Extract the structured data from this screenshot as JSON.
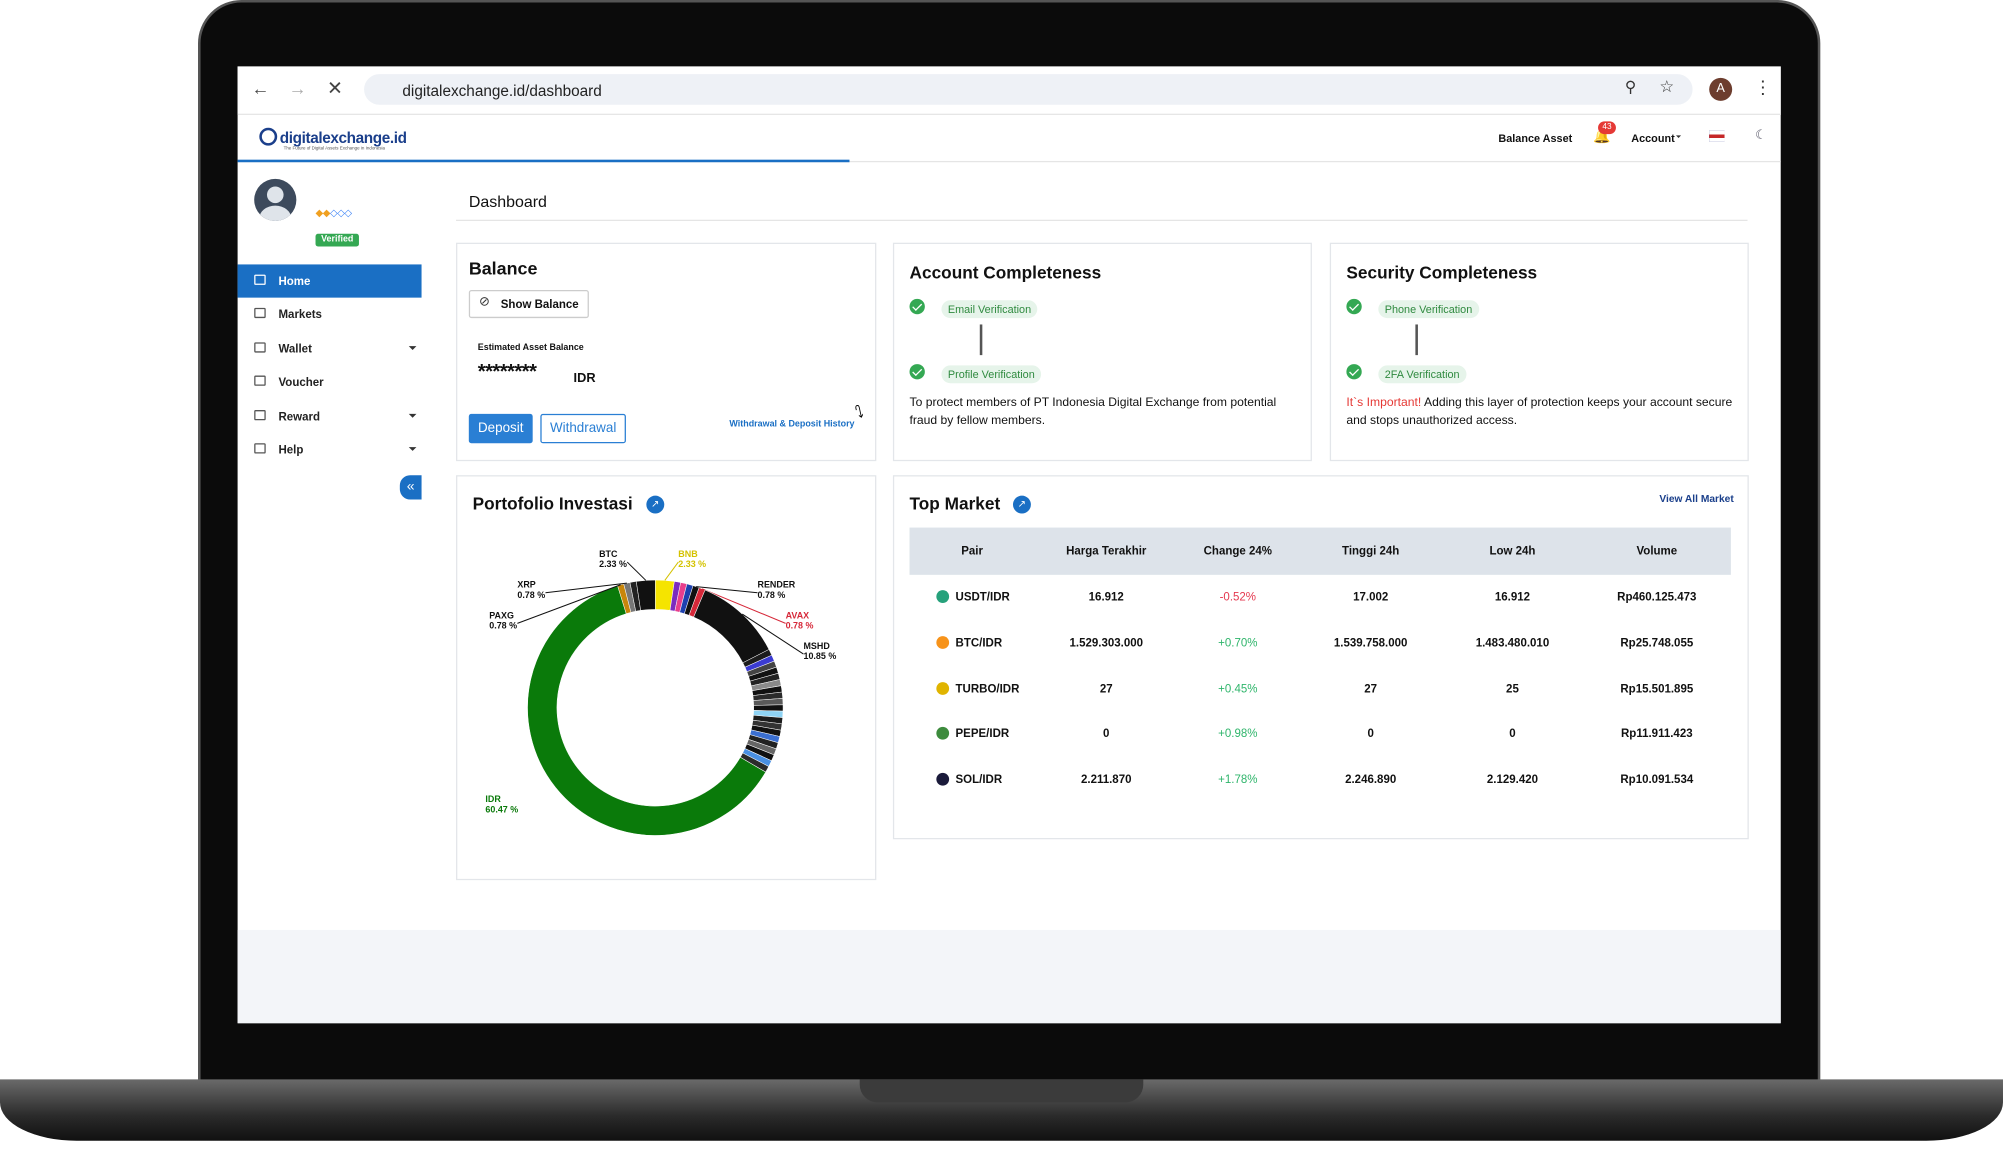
{
  "browser": {
    "url": "digitalexchange.id/dashboard",
    "profile_initial": "A"
  },
  "header": {
    "logo": "digitalexchange.id",
    "logo_tagline": "The Future of Digital Assets Exchange in Indonesia",
    "balance_asset": "Balance Asset",
    "notification_count": "43",
    "account": "Account"
  },
  "sidebar": {
    "badge": "Verified",
    "menu": [
      "Home",
      "Markets",
      "Wallet",
      "Voucher",
      "Reward",
      "Help"
    ]
  },
  "page_title": "Dashboard",
  "balance_card": {
    "title": "Balance",
    "show_balance": "Show Balance",
    "estimate_label": "Estimated Asset Balance",
    "hidden_amount": "********",
    "currency": "IDR",
    "deposit": "Deposit",
    "withdrawal": "Withdrawal",
    "history": "Withdrawal & Deposit History"
  },
  "account_card": {
    "title": "Account Completeness",
    "steps": [
      "Email Verification",
      "Profile Verification"
    ],
    "note": "To protect members of PT Indonesia Digital Exchange from potential fraud by fellow members."
  },
  "security_card": {
    "title": "Security Completeness",
    "steps": [
      "Phone Verification",
      "2FA Verification"
    ],
    "important": "It`s Important!",
    "note": "Adding this layer of protection keeps your account secure and stops unauthorized access."
  },
  "chart_data": {
    "type": "pie",
    "title": "Portofolio Investasi",
    "categories": [
      "BNB",
      null,
      null,
      null,
      "RENDER",
      "AVAX",
      "MSHD",
      null,
      null,
      null,
      null,
      null,
      null,
      null,
      null,
      null,
      null,
      null,
      null,
      null,
      null,
      null,
      null,
      null,
      null,
      null,
      null,
      "IDR",
      "PAXG",
      "XRP",
      null,
      "BTC"
    ],
    "values": [
      2.33,
      0.78,
      0.78,
      0.78,
      0.78,
      0.78,
      10.85,
      0.78,
      0.78,
      0.78,
      0.78,
      0.78,
      0.78,
      0.78,
      0.78,
      0.78,
      0.78,
      0.78,
      0.78,
      0.78,
      0.78,
      0.78,
      0.78,
      0.78,
      0.78,
      0.78,
      0.78,
      60.47,
      0.78,
      0.78,
      0.78,
      2.33
    ],
    "value_labels": [
      "2.33 %",
      null,
      null,
      null,
      "0.78 %",
      "0.78 %",
      "10.85 %",
      null,
      null,
      null,
      null,
      null,
      null,
      null,
      null,
      null,
      null,
      null,
      null,
      null,
      null,
      null,
      null,
      null,
      null,
      null,
      null,
      "60.47 %",
      "0.78 %",
      "0.78 %",
      null,
      "2.33 %"
    ],
    "colors": [
      "#f5e400",
      "#7b2cbf",
      "#e83e8c",
      "#1e40af",
      "#111111",
      "#d62839",
      "#111111",
      "#1c1c1c",
      "#3b3bd1",
      "#444444",
      "#111111",
      "#222222",
      "#8a8a8a",
      "#111111",
      "#2b2b2b",
      "#5a5a5a",
      "#111111",
      "#8fd3f4",
      "#1c1c1c",
      "#333333",
      "#111111",
      "#3b6fd1",
      "#222222",
      "#666666",
      "#111111",
      "#4a90e2",
      "#2b2b2b",
      "#0a7a0a",
      "#c8860b",
      "#777777",
      "#222222",
      "#111111"
    ]
  },
  "top_market": {
    "title": "Top Market",
    "view_all": "View All Market",
    "columns": [
      "Pair",
      "Harga Terakhir",
      "Change 24%",
      "Tinggi 24h",
      "Low 24h",
      "Volume"
    ],
    "rows": [
      [
        "USDT/IDR",
        "16.912",
        "-0.52%",
        "17.002",
        "16.912",
        "Rp460.125.473"
      ],
      [
        "BTC/IDR",
        "1.529.303.000",
        "+0.70%",
        "1.539.758.000",
        "1.483.480.010",
        "Rp25.748.055"
      ],
      [
        "TURBO/IDR",
        "27",
        "+0.45%",
        "27",
        "25",
        "Rp15.501.895"
      ],
      [
        "PEPE/IDR",
        "0",
        "+0.98%",
        "0",
        "0",
        "Rp11.911.423"
      ],
      [
        "SOL/IDR",
        "2.211.870",
        "+1.78%",
        "2.246.890",
        "2.129.420",
        "Rp10.091.534"
      ]
    ]
  }
}
